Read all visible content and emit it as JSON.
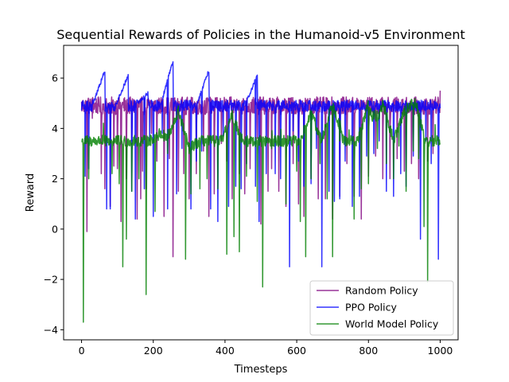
{
  "chart_data": {
    "type": "line",
    "title": "Sequential Rewards of Policies in the Humanoid-v5 Environment",
    "xlabel": "Timesteps",
    "ylabel": "Reward",
    "xlim": [
      -50,
      1050
    ],
    "ylim": [
      -4.4,
      7.3
    ],
    "xticks": [
      0,
      200,
      400,
      600,
      800,
      1000
    ],
    "yticks": [
      -4,
      -2,
      0,
      2,
      4,
      6
    ],
    "grid": false,
    "legend_position": "lower-right",
    "series": [
      {
        "name": "Random Policy",
        "color": "#800080",
        "baseline": 4.9,
        "amplitude": 0.35,
        "x": [
          0,
          1000
        ],
        "drops": [
          [
            15,
            -0.1
          ],
          [
            30,
            4.4
          ],
          [
            55,
            2.2
          ],
          [
            65,
            1.6
          ],
          [
            80,
            0.9
          ],
          [
            90,
            2.5
          ],
          [
            100,
            2.4
          ],
          [
            110,
            0.3
          ],
          [
            125,
            2.0
          ],
          [
            140,
            3.5
          ],
          [
            155,
            0.4
          ],
          [
            165,
            1.2
          ],
          [
            170,
            2.3
          ],
          [
            180,
            1.6
          ],
          [
            195,
            3.8
          ],
          [
            210,
            2.7
          ],
          [
            230,
            0.5
          ],
          [
            245,
            2.8
          ],
          [
            255,
            -1.1
          ],
          [
            270,
            1.5
          ],
          [
            285,
            2.2
          ],
          [
            300,
            1.2
          ],
          [
            320,
            2.2
          ],
          [
            340,
            3.1
          ],
          [
            355,
            0.5
          ],
          [
            370,
            1.4
          ],
          [
            390,
            3.4
          ],
          [
            405,
            2.7
          ],
          [
            420,
            1.2
          ],
          [
            440,
            2.2
          ],
          [
            455,
            1.4
          ],
          [
            470,
            2.4
          ],
          [
            490,
            3.6
          ],
          [
            500,
            0.2
          ],
          [
            520,
            1.5
          ],
          [
            530,
            2.4
          ],
          [
            550,
            1.5
          ],
          [
            570,
            0.9
          ],
          [
            590,
            2.6
          ],
          [
            605,
            1.0
          ],
          [
            620,
            0.5
          ],
          [
            640,
            2.0
          ],
          [
            660,
            1.2
          ],
          [
            680,
            1.2
          ],
          [
            700,
            0.4
          ],
          [
            720,
            1.3
          ],
          [
            740,
            2.6
          ],
          [
            760,
            1.3
          ],
          [
            780,
            0.4
          ],
          [
            800,
            2.1
          ],
          [
            820,
            2.9
          ],
          [
            840,
            2.0
          ],
          [
            860,
            2.0
          ],
          [
            880,
            2.8
          ],
          [
            900,
            2.3
          ],
          [
            920,
            2.6
          ],
          [
            940,
            2.0
          ],
          [
            965,
            2.7
          ],
          [
            980,
            3.0
          ]
        ],
        "end_y": 5.5
      },
      {
        "name": "PPO Policy",
        "color": "#0000ff",
        "baseline": 4.9,
        "peaks": [
          [
            65,
            6.3
          ],
          [
            130,
            6.1
          ],
          [
            185,
            5.4
          ],
          [
            255,
            6.7
          ],
          [
            355,
            6.3
          ],
          [
            490,
            6.1
          ]
        ],
        "drops": [
          [
            10,
            2.1
          ],
          [
            20,
            2.4
          ],
          [
            70,
            0.8
          ],
          [
            80,
            0.8
          ],
          [
            140,
            1.5
          ],
          [
            150,
            0.4
          ],
          [
            175,
            1.6
          ],
          [
            190,
            3.5
          ],
          [
            200,
            0.5
          ],
          [
            225,
            3.8
          ],
          [
            240,
            0.8
          ],
          [
            265,
            1.4
          ],
          [
            280,
            3.2
          ],
          [
            305,
            0.8
          ],
          [
            320,
            2.7
          ],
          [
            335,
            3.1
          ],
          [
            360,
            0.8
          ],
          [
            380,
            0.3
          ],
          [
            395,
            3.7
          ],
          [
            410,
            0.9
          ],
          [
            430,
            1.7
          ],
          [
            445,
            1.6
          ],
          [
            460,
            2.6
          ],
          [
            485,
            1.7
          ],
          [
            495,
            0.3
          ],
          [
            515,
            2.2
          ],
          [
            540,
            2.2
          ],
          [
            555,
            2.0
          ],
          [
            580,
            -1.5
          ],
          [
            590,
            3.9
          ],
          [
            605,
            2.7
          ],
          [
            620,
            1.7
          ],
          [
            640,
            1.8
          ],
          [
            655,
            3.2
          ],
          [
            670,
            -1.5
          ],
          [
            690,
            1.5
          ],
          [
            705,
            1.1
          ],
          [
            720,
            1.2
          ],
          [
            735,
            2.7
          ],
          [
            755,
            0.9
          ],
          [
            775,
            1.3
          ],
          [
            795,
            2.9
          ],
          [
            815,
            3.0
          ],
          [
            830,
            3.5
          ],
          [
            850,
            1.5
          ],
          [
            870,
            1.3
          ],
          [
            890,
            2.2
          ],
          [
            905,
            1.7
          ],
          [
            925,
            2.9
          ],
          [
            945,
            -0.4
          ],
          [
            960,
            3.5
          ],
          [
            975,
            2.6
          ],
          [
            995,
            -1.2
          ]
        ],
        "end_y": 4.8
      },
      {
        "name": "World Model Policy",
        "color": "#008000",
        "baseline": 3.5,
        "drops": [
          [
            5,
            -3.7
          ],
          [
            20,
            2.0
          ],
          [
            60,
            3.5
          ],
          [
            85,
            2.2
          ],
          [
            105,
            1.8
          ],
          [
            115,
            -1.5
          ],
          [
            125,
            -0.4
          ],
          [
            140,
            1.5
          ],
          [
            160,
            2.0
          ],
          [
            180,
            -2.6
          ],
          [
            205,
            0.7
          ],
          [
            240,
            3.0
          ],
          [
            290,
            -1.2
          ],
          [
            305,
            1.4
          ],
          [
            330,
            1.6
          ],
          [
            350,
            2.0
          ],
          [
            380,
            1.6
          ],
          [
            405,
            -1.0
          ],
          [
            425,
            -0.3
          ],
          [
            440,
            -0.9
          ],
          [
            460,
            2.1
          ],
          [
            490,
            1.1
          ],
          [
            505,
            -2.3
          ],
          [
            530,
            3.2
          ],
          [
            555,
            3.3
          ],
          [
            570,
            1.0
          ],
          [
            600,
            2.3
          ],
          [
            610,
            0.3
          ],
          [
            625,
            -1.1
          ],
          [
            640,
            2.0
          ],
          [
            665,
            2.6
          ],
          [
            685,
            1.2
          ],
          [
            700,
            -1.1
          ],
          [
            720,
            3.5
          ],
          [
            745,
            3.4
          ],
          [
            760,
            0.4
          ],
          [
            780,
            1.6
          ],
          [
            800,
            1.8
          ],
          [
            825,
            3.2
          ],
          [
            850,
            2.6
          ],
          [
            870,
            2.0
          ],
          [
            885,
            3.3
          ],
          [
            905,
            1.5
          ],
          [
            925,
            3.1
          ],
          [
            940,
            2.8
          ],
          [
            955,
            0.1
          ],
          [
            965,
            -2.1
          ],
          [
            985,
            3.4
          ]
        ],
        "rise": [
          [
            220,
            3.8
          ],
          [
            270,
            4.7
          ],
          [
            300,
            3.2
          ],
          [
            420,
            4.5
          ],
          [
            640,
            4.6
          ],
          [
            700,
            5.1
          ],
          [
            800,
            5.0
          ],
          [
            840,
            5.0
          ],
          [
            900,
            4.7
          ],
          [
            930,
            5.1
          ]
        ],
        "end_y": 3.4
      }
    ]
  }
}
